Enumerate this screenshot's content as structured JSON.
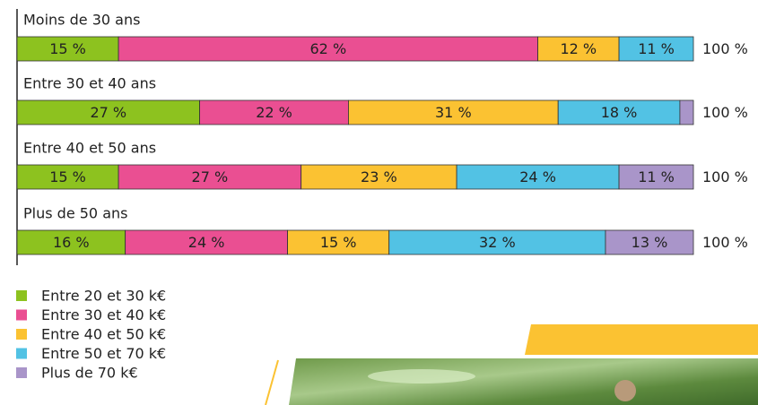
{
  "chart_data": {
    "type": "stacked-bar-horizontal",
    "categories": [
      "Moins de 30 ans",
      "Entre 30 et 40 ans",
      "Entre 40 et 50 ans",
      "Plus de 50 ans"
    ],
    "series": [
      {
        "name": "Entre 20 et 30 k€",
        "color": "#8dc21f",
        "values": [
          15,
          27,
          15,
          16
        ],
        "value_labels": [
          "15 %",
          "27 %",
          "15 %",
          "16 %"
        ]
      },
      {
        "name": "Entre 30 et 40 k€",
        "color": "#ea4f92",
        "values": [
          62,
          22,
          27,
          24
        ],
        "value_labels": [
          "62 %",
          "22 %",
          "27 %",
          "24 %"
        ]
      },
      {
        "name": "Entre 40 et 50 k€",
        "color": "#fbc232",
        "values": [
          12,
          31,
          23,
          15
        ],
        "value_labels": [
          "12 %",
          "31 %",
          "23 %",
          "15 %"
        ]
      },
      {
        "name": "Entre 50 et 70 k€",
        "color": "#52c2e4",
        "values": [
          11,
          18,
          24,
          32
        ],
        "value_labels": [
          "11 %",
          "18 %",
          "24 %",
          "32 %"
        ]
      },
      {
        "name": "Plus de 70 k€",
        "color": "#a995c9",
        "values": [
          0,
          2,
          11,
          13
        ],
        "value_labels": [
          null,
          null,
          "11 %",
          "13 %"
        ]
      }
    ],
    "totals": [
      100,
      100,
      100,
      100
    ],
    "total_labels": [
      "100 %",
      "100 %",
      "100 %",
      "100 %"
    ],
    "xlim": [
      0,
      100
    ],
    "legend": "bottom-left"
  }
}
